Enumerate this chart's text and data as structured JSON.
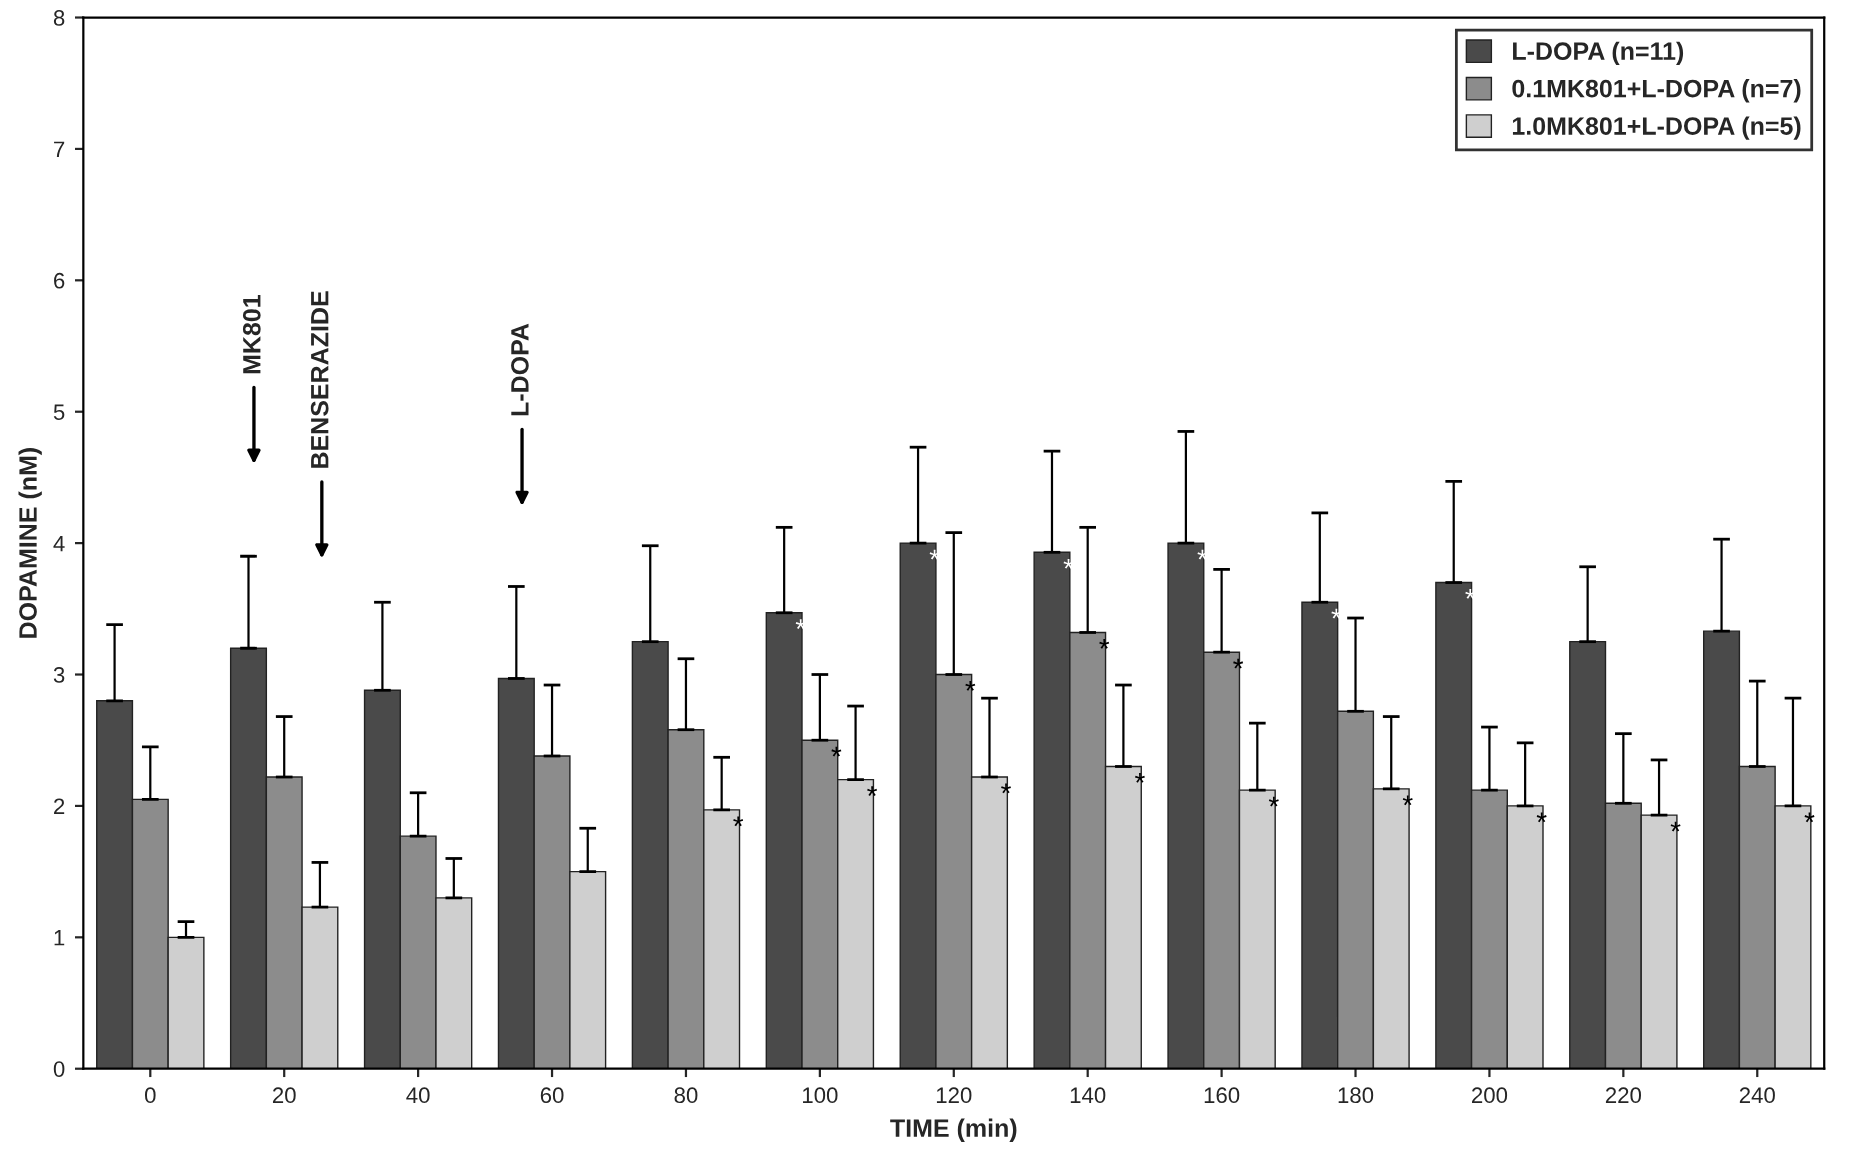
{
  "chart_data": {
    "type": "bar",
    "xlabel": "TIME (min)",
    "ylabel": "DOPAMINE (nM)",
    "categories": [
      "0",
      "20",
      "40",
      "60",
      "80",
      "100",
      "120",
      "140",
      "160",
      "180",
      "200",
      "220",
      "240"
    ],
    "series": [
      {
        "name": "L-DOPA (n=11)",
        "color": "#4a4a4a",
        "values": [
          2.8,
          3.2,
          2.88,
          2.97,
          3.25,
          3.47,
          4.0,
          3.93,
          4.0,
          3.55,
          3.7,
          3.25,
          3.33
        ],
        "errors": [
          [
            2.8,
            3.38
          ],
          [
            3.2,
            3.9
          ],
          [
            2.88,
            3.55
          ],
          [
            2.97,
            3.67
          ],
          [
            3.25,
            3.98
          ],
          [
            3.47,
            4.12
          ],
          [
            4.0,
            4.73
          ],
          [
            3.93,
            4.7
          ],
          [
            4.0,
            4.85
          ],
          [
            3.55,
            4.23
          ],
          [
            3.7,
            4.47
          ],
          [
            3.25,
            3.82
          ],
          [
            3.33,
            4.03
          ]
        ],
        "value_labels": [
          null,
          null,
          null,
          null,
          null,
          "*",
          "*",
          "*",
          "*",
          "*",
          "*",
          null,
          null
        ]
      },
      {
        "name": "0.1MK801+L-DOPA (n=7)",
        "color": "#8c8c8c",
        "values": [
          2.05,
          2.22,
          1.77,
          2.38,
          2.58,
          2.5,
          3.0,
          3.32,
          3.17,
          2.72,
          2.12,
          2.02,
          2.3
        ],
        "errors": [
          [
            2.05,
            2.45
          ],
          [
            2.22,
            2.68
          ],
          [
            1.77,
            2.1
          ],
          [
            2.38,
            2.92
          ],
          [
            2.58,
            3.12
          ],
          [
            2.5,
            3.0
          ],
          [
            3.0,
            4.08
          ],
          [
            3.32,
            4.12
          ],
          [
            3.17,
            3.8
          ],
          [
            2.72,
            3.43
          ],
          [
            2.12,
            2.6
          ],
          [
            2.02,
            2.55
          ],
          [
            2.3,
            2.95
          ]
        ],
        "value_labels": [
          null,
          null,
          null,
          null,
          null,
          "*",
          "*",
          "*",
          "*",
          null,
          null,
          null,
          null
        ]
      },
      {
        "name": "1.0MK801+L-DOPA (n=5)",
        "color": "#cfcfcf",
        "values": [
          1.0,
          1.23,
          1.3,
          1.5,
          1.97,
          2.2,
          2.22,
          2.3,
          2.12,
          2.13,
          2.0,
          1.93,
          2.0
        ],
        "errors": [
          [
            1.0,
            1.12
          ],
          [
            1.23,
            1.57
          ],
          [
            1.3,
            1.6
          ],
          [
            1.5,
            1.83
          ],
          [
            1.97,
            2.37
          ],
          [
            2.2,
            2.76
          ],
          [
            2.22,
            2.82
          ],
          [
            2.3,
            2.92
          ],
          [
            2.12,
            2.63
          ],
          [
            2.13,
            2.68
          ],
          [
            2.0,
            2.48
          ],
          [
            1.93,
            2.35
          ],
          [
            2.0,
            2.82
          ]
        ],
        "value_labels": [
          null,
          null,
          null,
          null,
          "*",
          "*",
          "*",
          "*",
          "*",
          "*",
          "*",
          "*",
          "*"
        ]
      }
    ],
    "ylim": [
      0,
      8
    ],
    "yticks": [
      0,
      1,
      2,
      3,
      4,
      5,
      6,
      7,
      8
    ],
    "grid": false,
    "legend": "top right",
    "annotations": [
      "MK801",
      "BENSERAZIDE",
      "L-DOPA"
    ]
  }
}
